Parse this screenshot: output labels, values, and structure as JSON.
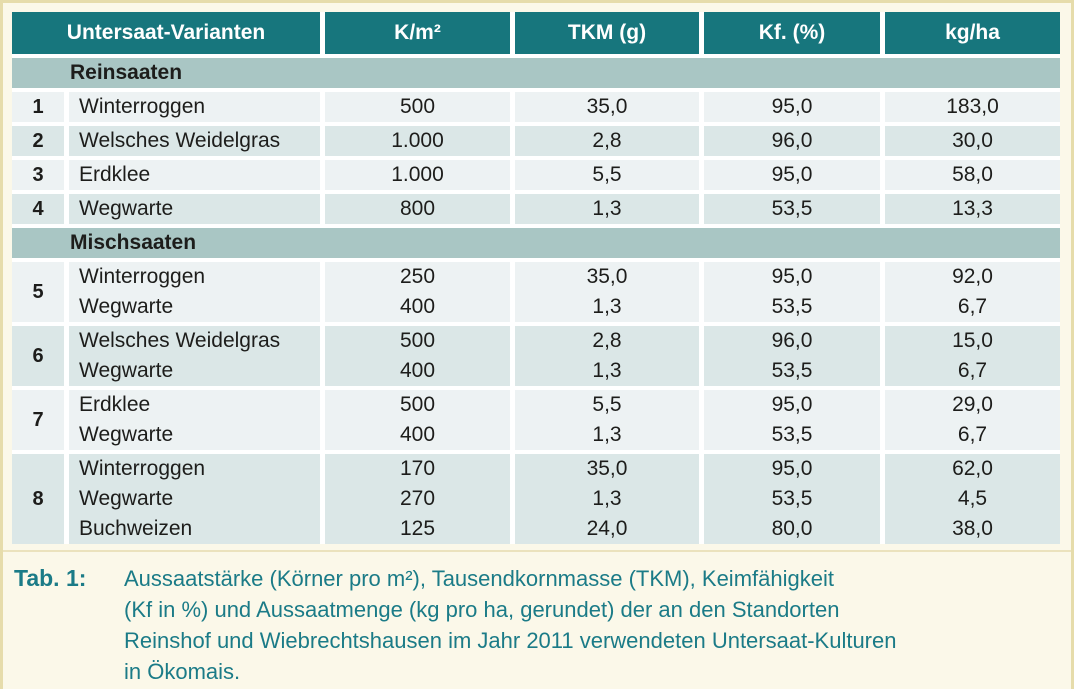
{
  "colors": {
    "header_teal": "#17767d",
    "section_band": "#a9c6c4",
    "row_light": "#edf2f3",
    "row_dark": "#dbe7e7",
    "page_cream": "#fbf8e9",
    "border_tan": "#e6dcab",
    "separator": "#ebe2bd",
    "caption_teal": "#1b7b87",
    "text_dark": "#1d1d1b"
  },
  "table": {
    "headers": [
      "Untersaat-Varianten",
      "K/m²",
      "TKM (g)",
      "Kf. (%)",
      "kg/ha"
    ],
    "sections": [
      {
        "title": "Reinsaaten",
        "groups": [
          {
            "num": "1",
            "rows": [
              {
                "name": "Winterroggen",
                "values": [
                  "500",
                  "35,0",
                  "95,0",
                  "183,0"
                ]
              }
            ]
          },
          {
            "num": "2",
            "rows": [
              {
                "name": "Welsches Weidelgras",
                "values": [
                  "1.000",
                  "2,8",
                  "96,0",
                  "30,0"
                ]
              }
            ]
          },
          {
            "num": "3",
            "rows": [
              {
                "name": "Erdklee",
                "values": [
                  "1.000",
                  "5,5",
                  "95,0",
                  "58,0"
                ]
              }
            ]
          },
          {
            "num": "4",
            "rows": [
              {
                "name": "Wegwarte",
                "values": [
                  "800",
                  "1,3",
                  "53,5",
                  "13,3"
                ]
              }
            ]
          }
        ]
      },
      {
        "title": "Mischsaaten",
        "groups": [
          {
            "num": "5",
            "rows": [
              {
                "name": "Winterroggen",
                "values": [
                  "250",
                  "35,0",
                  "95,0",
                  "92,0"
                ]
              },
              {
                "name": "Wegwarte",
                "values": [
                  "400",
                  "1,3",
                  "53,5",
                  "6,7"
                ]
              }
            ]
          },
          {
            "num": "6",
            "rows": [
              {
                "name": "Welsches Weidelgras",
                "values": [
                  "500",
                  "2,8",
                  "96,0",
                  "15,0"
                ]
              },
              {
                "name": "Wegwarte",
                "values": [
                  "400",
                  "1,3",
                  "53,5",
                  "6,7"
                ]
              }
            ]
          },
          {
            "num": "7",
            "rows": [
              {
                "name": "Erdklee",
                "values": [
                  "500",
                  "5,5",
                  "95,0",
                  "29,0"
                ]
              },
              {
                "name": "Wegwarte",
                "values": [
                  "400",
                  "1,3",
                  "53,5",
                  "6,7"
                ]
              }
            ]
          },
          {
            "num": "8",
            "rows": [
              {
                "name": "Winterroggen",
                "values": [
                  "170",
                  "35,0",
                  "95,0",
                  "62,0"
                ]
              },
              {
                "name": "Wegwarte",
                "values": [
                  "270",
                  "1,3",
                  "53,5",
                  "4,5"
                ]
              },
              {
                "name": "Buchweizen",
                "values": [
                  "125",
                  "24,0",
                  "80,0",
                  "38,0"
                ]
              }
            ]
          }
        ]
      }
    ]
  },
  "caption": {
    "label": "Tab. 1:",
    "lines": [
      "Aussaatstärke (Körner pro m²), Tausendkornmasse (TKM), Keimfähigkeit",
      "(Kf in %) und Aussaatmenge (kg pro ha, gerundet) der an den Standorten",
      "Reinshof und Wiebrechtshausen im Jahr 2011 verwendeten Untersaat-Kulturen",
      "in Ökomais."
    ]
  }
}
